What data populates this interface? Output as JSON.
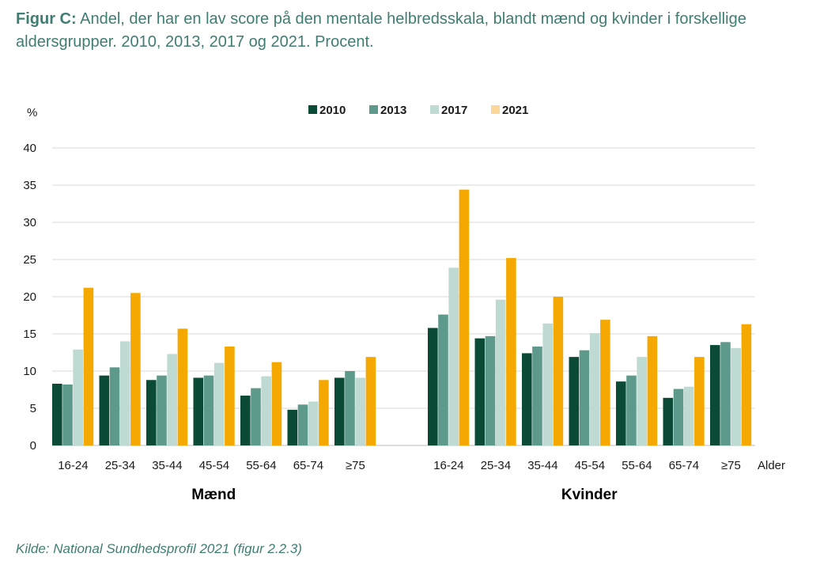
{
  "title": {
    "lead": "Figur C:",
    "text": "Andel, der har en lav score på den mentale helbredsskala, blandt mænd og kvinder i forskellige aldersgrupper. 2010, 2013, 2017 og 2021. Procent."
  },
  "source": "Kilde: National Sundhedsprofil 2021 (figur 2.2.3)",
  "chart_data": {
    "type": "bar",
    "ylabel": "%",
    "xlabel": "Alder",
    "ylim": [
      0,
      40
    ],
    "yticks": [
      0,
      5,
      10,
      15,
      20,
      25,
      30,
      35,
      40
    ],
    "grid": true,
    "legend_position": "top",
    "categories": [
      "16-24",
      "25-34",
      "35-44",
      "45-54",
      "55-64",
      "65-74",
      "≥75"
    ],
    "groups": [
      {
        "name": "Mænd",
        "series": [
          {
            "name": "2010",
            "color": "#0b4a37",
            "values": [
              8.3,
              9.4,
              8.8,
              9.1,
              6.7,
              4.8,
              9.1
            ]
          },
          {
            "name": "2013",
            "color": "#5e9a8b",
            "values": [
              8.2,
              10.5,
              9.4,
              9.4,
              7.7,
              5.5,
              10.0
            ]
          },
          {
            "name": "2017",
            "color": "#bfd9d3",
            "values": [
              12.9,
              14.0,
              12.3,
              11.1,
              9.3,
              5.9,
              9.1
            ]
          },
          {
            "name": "2021",
            "color": "#f5a800",
            "values": [
              21.2,
              20.5,
              15.7,
              13.3,
              11.2,
              8.8,
              11.9
            ]
          }
        ]
      },
      {
        "name": "Kvinder",
        "series": [
          {
            "name": "2010",
            "color": "#0b4a37",
            "values": [
              15.8,
              14.4,
              12.4,
              11.9,
              8.6,
              6.4,
              13.5
            ]
          },
          {
            "name": "2013",
            "color": "#5e9a8b",
            "values": [
              17.6,
              14.7,
              13.3,
              12.8,
              9.4,
              7.6,
              13.9
            ]
          },
          {
            "name": "2017",
            "color": "#bfd9d3",
            "values": [
              23.9,
              19.6,
              16.4,
              15.1,
              11.9,
              7.9,
              13.1
            ]
          },
          {
            "name": "2021",
            "color": "#f5a800",
            "values": [
              34.4,
              25.2,
              20.0,
              16.9,
              14.7,
              11.9,
              16.3
            ]
          }
        ]
      }
    ],
    "legend": [
      {
        "label": "2010",
        "color": "#0b4a37"
      },
      {
        "label": "2013",
        "color": "#5e9a8b"
      },
      {
        "label": "2017",
        "color": "#bfd9d3"
      },
      {
        "label": "2021",
        "color": "#fcd79a"
      }
    ],
    "gridline_color": "#d9d9d9"
  }
}
